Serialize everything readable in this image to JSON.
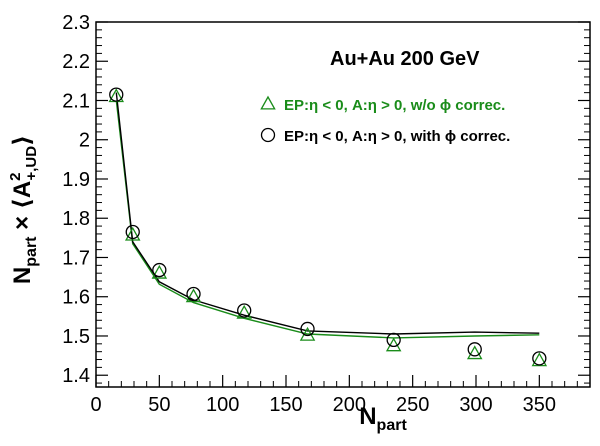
{
  "chart_data": {
    "type": "scatter",
    "header": "Au+Au 200 GeV",
    "xlabel": "N_part",
    "ylabel": "N_part × ⟨A²_+,UD⟩",
    "xlim": [
      0,
      390
    ],
    "ylim": [
      1.37,
      2.3
    ],
    "x_ticks": [
      0,
      50,
      100,
      150,
      200,
      250,
      300,
      350
    ],
    "y_ticks": [
      1.4,
      1.5,
      1.6,
      1.7,
      1.8,
      1.9,
      2.0,
      2.1,
      2.2,
      2.3
    ],
    "y_tick_labels": [
      "1.4",
      "1.5",
      "1.6",
      "1.7",
      "1.8",
      "1.9",
      "2",
      "2.1",
      "2.2",
      "2.3"
    ],
    "legend_position": "top-right",
    "series": [
      {
        "name": "EP:η < 0, A:η > 0, w/o ϕ correc.",
        "marker": "triangle",
        "color": "#1a8c1a",
        "x": [
          16,
          29,
          50,
          77,
          117,
          167,
          235,
          299,
          350
        ],
        "y": [
          2.11,
          1.757,
          1.66,
          1.6,
          1.558,
          1.502,
          1.475,
          1.455,
          1.437
        ],
        "curve_x": [
          16,
          29,
          50,
          77,
          117,
          167,
          235,
          299,
          350
        ],
        "curve_y": [
          2.1,
          1.735,
          1.632,
          1.585,
          1.545,
          1.505,
          1.495,
          1.5,
          1.503
        ]
      },
      {
        "name": "EP:η < 0, A:η > 0, with ϕ correc.",
        "marker": "circle",
        "color": "#000000",
        "x": [
          16,
          29,
          50,
          77,
          117,
          167,
          235,
          299,
          350
        ],
        "y": [
          2.115,
          1.765,
          1.668,
          1.607,
          1.565,
          1.518,
          1.49,
          1.466,
          1.443
        ],
        "curve_x": [
          16,
          29,
          50,
          77,
          117,
          167,
          235,
          299,
          350
        ],
        "curve_y": [
          2.12,
          1.74,
          1.638,
          1.592,
          1.553,
          1.513,
          1.505,
          1.51,
          1.507
        ]
      }
    ]
  }
}
